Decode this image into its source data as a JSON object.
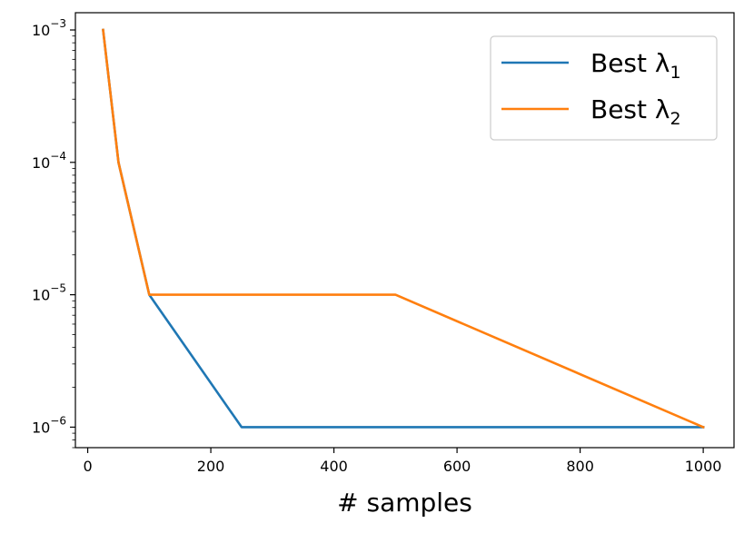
{
  "chart_data": {
    "type": "line",
    "xlabel": "# samples",
    "ylabel": "",
    "xlim": [
      -20,
      1050
    ],
    "ylim": [
      7e-07,
      0.00135
    ],
    "yscale": "log",
    "grid": false,
    "legend_position": "top-right",
    "x_ticks": [
      0,
      200,
      400,
      600,
      800,
      1000
    ],
    "x_tick_labels": [
      "0",
      "200",
      "400",
      "600",
      "800",
      "1000"
    ],
    "y_ticks": [
      0.001,
      0.0001,
      1e-05,
      1e-06
    ],
    "y_tick_labels": [
      {
        "base": "10",
        "exp": "−3"
      },
      {
        "base": "10",
        "exp": "−4"
      },
      {
        "base": "10",
        "exp": "−5"
      },
      {
        "base": "10",
        "exp": "−6"
      }
    ],
    "series": [
      {
        "name_main": "Best λ",
        "name_sub": "1",
        "color": "#1f77b4",
        "x": [
          25,
          50,
          100,
          250,
          500,
          1000
        ],
        "y": [
          0.001,
          0.0001,
          1e-05,
          1e-06,
          1e-06,
          1e-06
        ]
      },
      {
        "name_main": "Best λ",
        "name_sub": "2",
        "color": "#ff7f0e",
        "x": [
          25,
          50,
          100,
          250,
          500,
          1000
        ],
        "y": [
          0.001,
          0.0001,
          1e-05,
          1e-05,
          1e-05,
          1e-06
        ]
      }
    ]
  }
}
